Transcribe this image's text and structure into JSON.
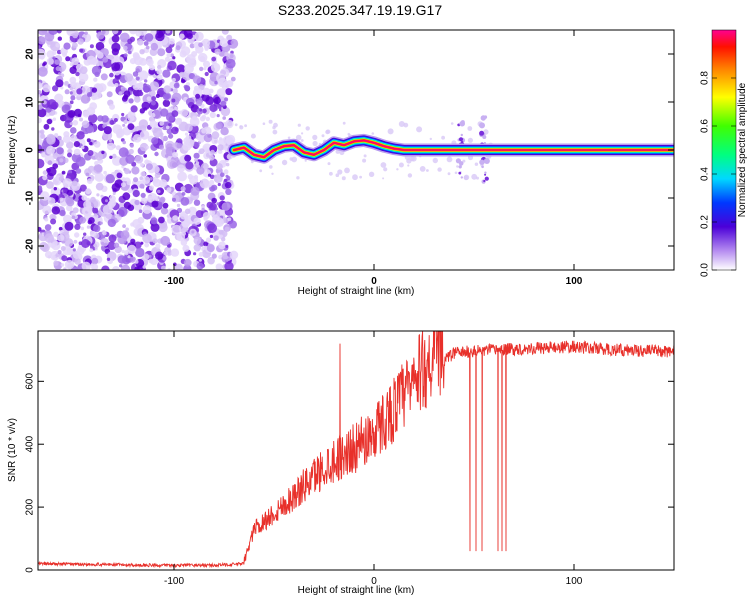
{
  "title": "S233.2025.347.19.19.G17",
  "chart_data": [
    {
      "type": "heatmap",
      "name": "spectrogram",
      "xlabel": "Height of straight line (km)",
      "ylabel": "Frequency (Hz)",
      "xlim": [
        -168,
        150
      ],
      "ylim": [
        -25,
        25
      ],
      "xticks": [
        -100,
        0,
        100
      ],
      "yticks": [
        -20,
        -10,
        0,
        10,
        20
      ],
      "noise_region": [
        -168,
        -70
      ],
      "signal_trace": {
        "x": [
          -70,
          -65,
          -60,
          -55,
          -50,
          -45,
          -40,
          -35,
          -30,
          -25,
          -20,
          -15,
          -10,
          -5,
          0,
          5,
          10,
          15,
          150
        ],
        "y": [
          0,
          0.5,
          -1,
          -1.5,
          0,
          0.8,
          1,
          -0.5,
          -1,
          0,
          1.5,
          1,
          1.8,
          2,
          1.5,
          0.8,
          0.3,
          0,
          0
        ]
      },
      "colorbar": {
        "label": "Normalized spectral amplitude",
        "range": [
          0,
          1
        ],
        "ticks": [
          "0.0",
          "0.2",
          "0.4",
          "0.6",
          "0.8"
        ]
      }
    },
    {
      "type": "line",
      "name": "snr",
      "xlabel": "Height of straight line (km)",
      "ylabel": "SNR (10 * v/v)",
      "xlim": [
        -168,
        150
      ],
      "ylim": [
        0,
        760
      ],
      "xticks": [
        -100,
        0,
        100
      ],
      "yticks": [
        0,
        200,
        400,
        600
      ],
      "color": "#e8302a",
      "series": [
        {
          "name": "SNR",
          "x": [
            -168,
            -140,
            -110,
            -80,
            -65,
            -60,
            -50,
            -40,
            -30,
            -20,
            -10,
            0,
            10,
            20,
            30,
            40,
            60,
            80,
            100,
            120,
            150
          ],
          "values": [
            20,
            18,
            15,
            15,
            20,
            120,
            170,
            220,
            280,
            330,
            360,
            410,
            480,
            560,
            640,
            690,
            700,
            705,
            710,
            700,
            695
          ]
        }
      ],
      "dips": [
        {
          "x": 48,
          "value": 60
        },
        {
          "x": 51,
          "value": 60
        },
        {
          "x": 54,
          "value": 60
        },
        {
          "x": 62,
          "value": 60
        },
        {
          "x": 64,
          "value": 60
        },
        {
          "x": 66,
          "value": 60
        }
      ],
      "spike": {
        "x": -17,
        "value": 720
      }
    }
  ]
}
